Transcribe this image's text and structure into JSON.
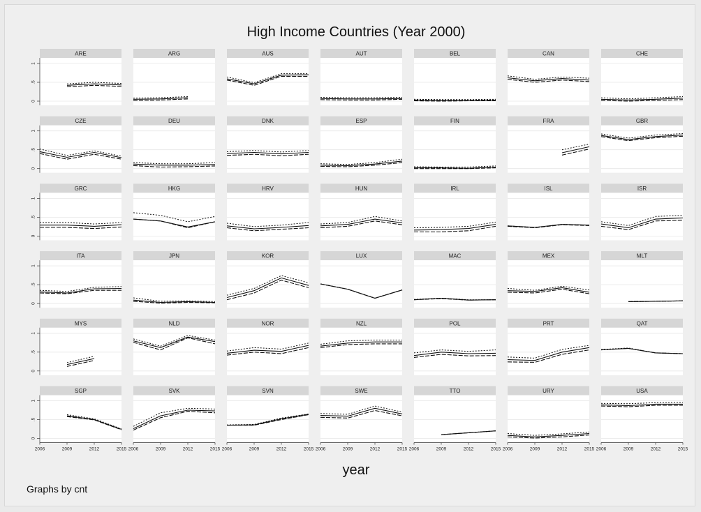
{
  "chart_data": {
    "type": "line",
    "title": "High Income Countries (Year 2000)",
    "xlabel": "year",
    "note": "Graphs by cnt",
    "x_ticks": [
      2006,
      2009,
      2012,
      2015
    ],
    "y_ticks": [
      0,
      0.5,
      1
    ],
    "y_tick_labels": [
      "0",
      ".5",
      "1"
    ],
    "ylim": [
      0,
      1
    ],
    "xlim": [
      2006,
      2015
    ],
    "grid": true,
    "series_styles": [
      "long-dash",
      "solid",
      "short-dash"
    ],
    "panels": [
      {
        "name": "ARE",
        "x": [
          2009,
          2012,
          2015
        ],
        "series": [
          [
            0.38,
            0.42,
            0.39
          ],
          [
            0.42,
            0.46,
            0.43
          ],
          [
            0.46,
            0.5,
            0.47
          ]
        ]
      },
      {
        "name": "ARG",
        "x": [
          2006,
          2009,
          2012
        ],
        "series": [
          [
            0.02,
            0.03,
            0.06
          ],
          [
            0.05,
            0.06,
            0.09
          ],
          [
            0.08,
            0.09,
            0.12
          ]
        ]
      },
      {
        "name": "AUS",
        "x": [
          2006,
          2009,
          2012,
          2015
        ],
        "series": [
          [
            0.56,
            0.42,
            0.66,
            0.66
          ],
          [
            0.59,
            0.46,
            0.69,
            0.7
          ],
          [
            0.64,
            0.49,
            0.73,
            0.73
          ]
        ]
      },
      {
        "name": "AUT",
        "x": [
          2006,
          2009,
          2012,
          2015
        ],
        "series": [
          [
            0.04,
            0.03,
            0.03,
            0.05
          ],
          [
            0.07,
            0.06,
            0.06,
            0.07
          ],
          [
            0.1,
            0.09,
            0.09,
            0.1
          ]
        ]
      },
      {
        "name": "BEL",
        "x": [
          2006,
          2009,
          2012,
          2015
        ],
        "series": [
          [
            0.01,
            0.0,
            0.01,
            0.01
          ],
          [
            0.03,
            0.02,
            0.02,
            0.03
          ],
          [
            0.05,
            0.04,
            0.04,
            0.05
          ]
        ]
      },
      {
        "name": "CAN",
        "x": [
          2006,
          2009,
          2012,
          2015
        ],
        "series": [
          [
            0.58,
            0.5,
            0.56,
            0.52
          ],
          [
            0.62,
            0.54,
            0.6,
            0.56
          ],
          [
            0.67,
            0.58,
            0.64,
            0.61
          ]
        ]
      },
      {
        "name": "CHE",
        "x": [
          2006,
          2009,
          2012,
          2015
        ],
        "series": [
          [
            0.02,
            0.0,
            0.02,
            0.04
          ],
          [
            0.05,
            0.03,
            0.05,
            0.08
          ],
          [
            0.09,
            0.06,
            0.09,
            0.12
          ]
        ]
      },
      {
        "name": "CZE",
        "x": [
          2006,
          2009,
          2012,
          2015
        ],
        "series": [
          [
            0.4,
            0.25,
            0.38,
            0.25
          ],
          [
            0.45,
            0.3,
            0.43,
            0.29
          ],
          [
            0.52,
            0.35,
            0.47,
            0.33
          ]
        ]
      },
      {
        "name": "DEU",
        "x": [
          2006,
          2009,
          2012,
          2015
        ],
        "series": [
          [
            0.08,
            0.04,
            0.05,
            0.07
          ],
          [
            0.12,
            0.09,
            0.09,
            0.11
          ],
          [
            0.16,
            0.13,
            0.13,
            0.16
          ]
        ]
      },
      {
        "name": "DNK",
        "x": [
          2006,
          2009,
          2012,
          2015
        ],
        "series": [
          [
            0.35,
            0.38,
            0.34,
            0.38
          ],
          [
            0.4,
            0.43,
            0.39,
            0.43
          ],
          [
            0.45,
            0.48,
            0.44,
            0.48
          ]
        ]
      },
      {
        "name": "ESP",
        "x": [
          2006,
          2009,
          2012,
          2015
        ],
        "series": [
          [
            0.06,
            0.05,
            0.09,
            0.16
          ],
          [
            0.09,
            0.08,
            0.12,
            0.2
          ],
          [
            0.13,
            0.11,
            0.16,
            0.25
          ]
        ]
      },
      {
        "name": "FIN",
        "x": [
          2006,
          2009,
          2012,
          2015
        ],
        "series": [
          [
            0.0,
            0.0,
            0.0,
            0.02
          ],
          [
            0.02,
            0.02,
            0.01,
            0.04
          ],
          [
            0.05,
            0.04,
            0.04,
            0.07
          ]
        ]
      },
      {
        "name": "FRA",
        "x": [
          2012,
          2015
        ],
        "series": [
          [
            0.36,
            0.52
          ],
          [
            0.42,
            0.58
          ],
          [
            0.5,
            0.65
          ]
        ]
      },
      {
        "name": "GBR",
        "x": [
          2006,
          2009,
          2012,
          2015
        ],
        "series": [
          [
            0.85,
            0.74,
            0.82,
            0.86
          ],
          [
            0.88,
            0.77,
            0.85,
            0.89
          ],
          [
            0.92,
            0.81,
            0.89,
            0.93
          ]
        ]
      },
      {
        "name": "GRC",
        "x": [
          2006,
          2009,
          2012,
          2015
        ],
        "series": [
          [
            0.23,
            0.23,
            0.2,
            0.24
          ],
          [
            0.29,
            0.29,
            0.26,
            0.3
          ],
          [
            0.36,
            0.36,
            0.32,
            0.36
          ]
        ]
      },
      {
        "name": "HKG",
        "x": [
          2006,
          2009,
          2012,
          2015
        ],
        "series": [
          [
            0.45,
            0.4,
            0.22,
            0.38
          ],
          [
            0.45,
            0.4,
            0.24,
            0.38
          ],
          [
            0.62,
            0.55,
            0.38,
            0.52
          ]
        ]
      },
      {
        "name": "HRV",
        "x": [
          2006,
          2009,
          2012,
          2015
        ],
        "series": [
          [
            0.22,
            0.14,
            0.18,
            0.22
          ],
          [
            0.27,
            0.19,
            0.23,
            0.28
          ],
          [
            0.34,
            0.25,
            0.29,
            0.36
          ]
        ]
      },
      {
        "name": "HUN",
        "x": [
          2006,
          2009,
          2012,
          2015
        ],
        "series": [
          [
            0.22,
            0.26,
            0.4,
            0.3
          ],
          [
            0.27,
            0.31,
            0.45,
            0.35
          ],
          [
            0.32,
            0.36,
            0.52,
            0.4
          ]
        ]
      },
      {
        "name": "IRL",
        "x": [
          2006,
          2009,
          2012,
          2015
        ],
        "series": [
          [
            0.11,
            0.11,
            0.14,
            0.26
          ],
          [
            0.16,
            0.17,
            0.2,
            0.31
          ],
          [
            0.22,
            0.23,
            0.26,
            0.37
          ]
        ]
      },
      {
        "name": "ISL",
        "x": [
          2006,
          2009,
          2012,
          2015
        ],
        "series": [
          [
            0.26,
            0.22,
            0.3,
            0.28
          ],
          [
            0.27,
            0.23,
            0.31,
            0.29
          ],
          [
            0.27,
            0.23,
            0.31,
            0.29
          ]
        ]
      },
      {
        "name": "ISR",
        "x": [
          2006,
          2009,
          2012,
          2015
        ],
        "series": [
          [
            0.26,
            0.17,
            0.4,
            0.42
          ],
          [
            0.32,
            0.22,
            0.45,
            0.48
          ],
          [
            0.38,
            0.28,
            0.52,
            0.55
          ]
        ]
      },
      {
        "name": "ITA",
        "x": [
          2006,
          2009,
          2012,
          2015
        ],
        "series": [
          [
            0.28,
            0.26,
            0.35,
            0.35
          ],
          [
            0.31,
            0.28,
            0.39,
            0.4
          ],
          [
            0.35,
            0.32,
            0.43,
            0.45
          ]
        ]
      },
      {
        "name": "JPN",
        "x": [
          2006,
          2009,
          2012,
          2015
        ],
        "series": [
          [
            0.06,
            0.01,
            0.03,
            0.02
          ],
          [
            0.09,
            0.03,
            0.05,
            0.03
          ],
          [
            0.15,
            0.06,
            0.07,
            0.05
          ]
        ]
      },
      {
        "name": "KOR",
        "x": [
          2006,
          2009,
          2012,
          2015
        ],
        "series": [
          [
            0.1,
            0.28,
            0.62,
            0.42
          ],
          [
            0.16,
            0.34,
            0.68,
            0.48
          ],
          [
            0.22,
            0.4,
            0.74,
            0.55
          ]
        ]
      },
      {
        "name": "LUX",
        "x": [
          2006,
          2009,
          2012,
          2015
        ],
        "series": [
          [
            0.52,
            0.38,
            0.14,
            0.36
          ],
          [
            0.52,
            0.38,
            0.14,
            0.36
          ],
          [
            0.52,
            0.38,
            0.14,
            0.36
          ]
        ]
      },
      {
        "name": "MAC",
        "x": [
          2006,
          2009,
          2012,
          2015
        ],
        "series": [
          [
            0.1,
            0.13,
            0.09,
            0.1
          ],
          [
            0.1,
            0.14,
            0.09,
            0.1
          ],
          [
            0.11,
            0.14,
            0.1,
            0.1
          ]
        ]
      },
      {
        "name": "MEX",
        "x": [
          2006,
          2009,
          2012,
          2015
        ],
        "series": [
          [
            0.3,
            0.28,
            0.38,
            0.26
          ],
          [
            0.34,
            0.32,
            0.42,
            0.3
          ],
          [
            0.4,
            0.35,
            0.46,
            0.36
          ]
        ]
      },
      {
        "name": "MLT",
        "x": [
          2009,
          2012,
          2015
        ],
        "series": [
          [
            0.05,
            0.06,
            0.07
          ],
          [
            0.05,
            0.06,
            0.07
          ],
          [
            0.05,
            0.06,
            0.07
          ]
        ]
      },
      {
        "name": "MYS",
        "x": [
          2009,
          2012
        ],
        "series": [
          [
            0.12,
            0.28
          ],
          [
            0.17,
            0.33
          ],
          [
            0.22,
            0.39
          ]
        ]
      },
      {
        "name": "NLD",
        "x": [
          2006,
          2009,
          2012,
          2015
        ],
        "series": [
          [
            0.76,
            0.56,
            0.88,
            0.72
          ],
          [
            0.8,
            0.62,
            0.9,
            0.78
          ],
          [
            0.85,
            0.66,
            0.94,
            0.82
          ]
        ]
      },
      {
        "name": "NOR",
        "x": [
          2006,
          2009,
          2012,
          2015
        ],
        "series": [
          [
            0.42,
            0.5,
            0.46,
            0.62
          ],
          [
            0.47,
            0.55,
            0.52,
            0.68
          ],
          [
            0.53,
            0.62,
            0.58,
            0.74
          ]
        ]
      },
      {
        "name": "NZL",
        "x": [
          2006,
          2009,
          2012,
          2015
        ],
        "series": [
          [
            0.62,
            0.7,
            0.72,
            0.72
          ],
          [
            0.66,
            0.74,
            0.77,
            0.77
          ],
          [
            0.71,
            0.8,
            0.82,
            0.82
          ]
        ]
      },
      {
        "name": "POL",
        "x": [
          2006,
          2009,
          2012,
          2015
        ],
        "series": [
          [
            0.36,
            0.44,
            0.4,
            0.41
          ],
          [
            0.41,
            0.5,
            0.46,
            0.47
          ],
          [
            0.48,
            0.56,
            0.52,
            0.56
          ]
        ]
      },
      {
        "name": "PRT",
        "x": [
          2006,
          2009,
          2012,
          2015
        ],
        "series": [
          [
            0.24,
            0.23,
            0.44,
            0.56
          ],
          [
            0.3,
            0.28,
            0.5,
            0.62
          ],
          [
            0.37,
            0.34,
            0.57,
            0.68
          ]
        ]
      },
      {
        "name": "QAT",
        "x": [
          2006,
          2009,
          2012,
          2015
        ],
        "series": [
          [
            0.56,
            0.6,
            0.48,
            0.46
          ],
          [
            0.56,
            0.6,
            0.48,
            0.46
          ],
          [
            0.57,
            0.61,
            0.48,
            0.46
          ]
        ]
      },
      {
        "name": "SGP",
        "x": [
          2009,
          2012,
          2015
        ],
        "series": [
          [
            0.58,
            0.49,
            0.23
          ],
          [
            0.6,
            0.5,
            0.24
          ],
          [
            0.63,
            0.52,
            0.25
          ]
        ]
      },
      {
        "name": "SVK",
        "x": [
          2006,
          2009,
          2012,
          2015
        ],
        "series": [
          [
            0.22,
            0.55,
            0.72,
            0.68
          ],
          [
            0.26,
            0.6,
            0.75,
            0.73
          ],
          [
            0.32,
            0.68,
            0.8,
            0.78
          ]
        ]
      },
      {
        "name": "SVN",
        "x": [
          2006,
          2009,
          2012,
          2015
        ],
        "series": [
          [
            0.35,
            0.35,
            0.5,
            0.63
          ],
          [
            0.35,
            0.36,
            0.52,
            0.64
          ],
          [
            0.36,
            0.37,
            0.54,
            0.65
          ]
        ]
      },
      {
        "name": "SWE",
        "x": [
          2006,
          2009,
          2012,
          2015
        ],
        "series": [
          [
            0.56,
            0.54,
            0.74,
            0.6
          ],
          [
            0.61,
            0.59,
            0.8,
            0.65
          ],
          [
            0.66,
            0.64,
            0.86,
            0.7
          ]
        ]
      },
      {
        "name": "TTO",
        "x": [
          2009,
          2012,
          2015
        ],
        "series": [
          [
            0.1,
            0.15,
            0.2
          ],
          [
            0.1,
            0.15,
            0.2
          ],
          [
            0.1,
            0.15,
            0.2
          ]
        ]
      },
      {
        "name": "URY",
        "x": [
          2006,
          2009,
          2012,
          2015
        ],
        "series": [
          [
            0.04,
            0.01,
            0.04,
            0.09
          ],
          [
            0.08,
            0.04,
            0.08,
            0.13
          ],
          [
            0.13,
            0.08,
            0.12,
            0.17
          ]
        ]
      },
      {
        "name": "USA",
        "x": [
          2006,
          2009,
          2012,
          2015
        ],
        "series": [
          [
            0.86,
            0.84,
            0.88,
            0.88
          ],
          [
            0.89,
            0.87,
            0.91,
            0.91
          ],
          [
            0.93,
            0.92,
            0.95,
            0.96
          ]
        ]
      }
    ]
  }
}
